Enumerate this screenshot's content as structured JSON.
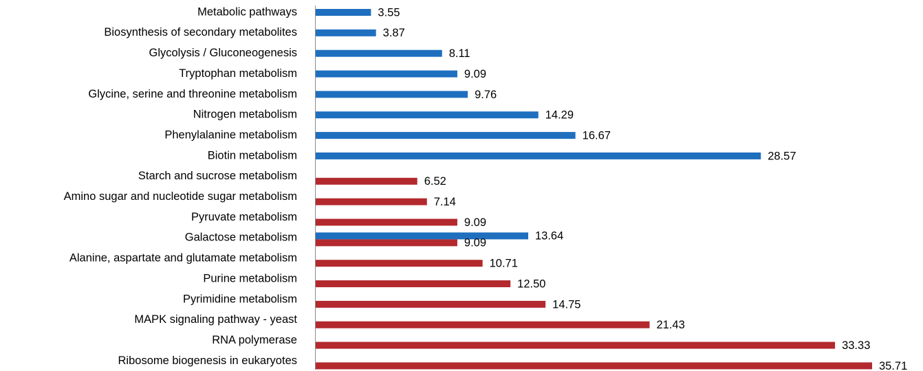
{
  "chart_data": {
    "type": "bar",
    "orientation": "horizontal",
    "categories": [
      "Metabolic pathways",
      "Biosynthesis of secondary metabolites",
      "Glycolysis / Gluconeogenesis",
      "Tryptophan metabolism",
      "Glycine, serine and threonine metabolism",
      "Nitrogen metabolism",
      "Phenylalanine metabolism",
      "Biotin metabolism",
      "Starch and sucrose metabolism",
      "Amino sugar and nucleotide sugar metabolism",
      "Pyruvate metabolism",
      "Galactose metabolism",
      "Alanine, aspartate and glutamate metabolism",
      "Purine metabolism",
      "Pyrimidine metabolism",
      "MAPK signaling pathway - yeast",
      "RNA polymerase",
      "Ribosome biogenesis in eukaryotes"
    ],
    "series": [
      {
        "color": "#1f6fbf",
        "values": [
          3.55,
          3.87,
          8.11,
          9.09,
          9.76,
          14.29,
          16.67,
          28.57,
          null,
          null,
          null,
          13.64,
          null,
          null,
          null,
          null,
          null,
          null
        ],
        "labels": [
          "3.55",
          "3.87",
          "8.11",
          "9.09",
          "9.76",
          "14.29",
          "16.67",
          "28.57",
          null,
          null,
          null,
          "13.64",
          null,
          null,
          null,
          null,
          null,
          null
        ]
      },
      {
        "color": "#b3292e",
        "values": [
          null,
          null,
          null,
          null,
          null,
          null,
          null,
          null,
          6.52,
          7.14,
          9.09,
          9.09,
          10.71,
          12.5,
          14.75,
          21.43,
          33.33,
          35.71
        ],
        "labels": [
          null,
          null,
          null,
          null,
          null,
          null,
          null,
          null,
          "6.52",
          "7.14",
          "9.09",
          "9.09",
          "10.71",
          "12.50",
          "14.75",
          "21.43",
          "33.33",
          "35.71"
        ]
      }
    ],
    "xlim": [
      0,
      35.71
    ],
    "grid": false,
    "legend": "none",
    "title": "",
    "xlabel": "",
    "ylabel": ""
  }
}
